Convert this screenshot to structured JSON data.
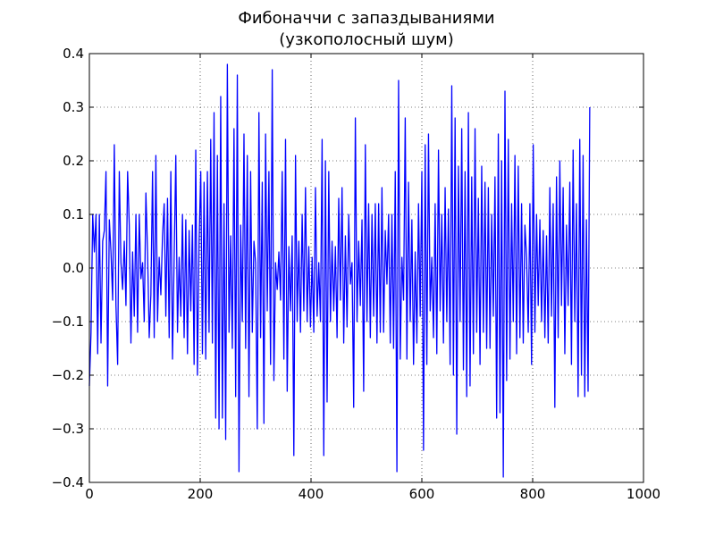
{
  "chart_data": {
    "type": "line",
    "title": "Фибоначчи с запаздываниями",
    "subtitle": "(узкополосный шум)",
    "xlabel": "",
    "ylabel": "",
    "xlim": [
      0,
      1000
    ],
    "ylim": [
      -0.4,
      0.4
    ],
    "xticks": [
      0,
      200,
      400,
      600,
      800,
      1000
    ],
    "yticks": [
      -0.4,
      -0.3,
      -0.2,
      -0.1,
      0.0,
      0.1,
      0.2,
      0.3,
      0.4
    ],
    "xtick_labels": [
      "0",
      "200",
      "400",
      "600",
      "800",
      "1000"
    ],
    "ytick_labels": [
      "−0.4",
      "−0.3",
      "−0.2",
      "−0.1",
      "0.0",
      "0.1",
      "0.2",
      "0.3",
      "0.4"
    ],
    "grid": true,
    "line_color": "#0000ff",
    "series": [
      {
        "x_start": 0,
        "x_step": 3,
        "values": [
          -0.22,
          -0.12,
          0.1,
          0.03,
          0.1,
          -0.16,
          0.1,
          -0.14,
          0.05,
          0.07,
          0.18,
          -0.22,
          0.09,
          0.03,
          -0.06,
          0.23,
          -0.07,
          -0.18,
          0.18,
          0.01,
          -0.04,
          0.05,
          -0.07,
          0.18,
          0.08,
          -0.14,
          0.03,
          -0.09,
          0.1,
          -0.12,
          0.1,
          -0.02,
          0.01,
          -0.1,
          0.14,
          0.03,
          -0.13,
          -0.05,
          0.18,
          -0.13,
          0.21,
          -0.1,
          0.02,
          -0.05,
          0.06,
          0.12,
          -0.09,
          0.13,
          -0.13,
          0.18,
          -0.17,
          0.02,
          0.21,
          -0.12,
          0.02,
          -0.09,
          0.1,
          -0.13,
          0.09,
          -0.16,
          0.07,
          -0.08,
          0.08,
          -0.18,
          0.22,
          -0.2,
          0.05,
          0.18,
          -0.16,
          0.16,
          -0.17,
          0.18,
          -0.12,
          0.24,
          -0.14,
          0.29,
          -0.28,
          0.21,
          -0.3,
          0.32,
          -0.28,
          0.12,
          -0.32,
          0.38,
          -0.12,
          0.06,
          -0.15,
          0.26,
          -0.24,
          0.36,
          -0.38,
          0.08,
          -0.1,
          0.25,
          -0.15,
          0.21,
          -0.24,
          0.18,
          -0.12,
          0.05,
          0.01,
          -0.3,
          0.29,
          -0.13,
          0.16,
          -0.29,
          0.25,
          -0.08,
          0.18,
          -0.18,
          0.37,
          -0.21,
          0.01,
          -0.04,
          0.03,
          -0.06,
          0.18,
          -0.17,
          0.24,
          -0.23,
          0.04,
          -0.08,
          0.06,
          -0.35,
          0.21,
          -0.1,
          0.05,
          -0.12,
          0.1,
          -0.08,
          0.15,
          -0.1,
          0.04,
          -0.11,
          0.02,
          -0.12,
          0.15,
          -0.09,
          0.01,
          -0.1,
          0.24,
          -0.35,
          0.2,
          -0.25,
          0.18,
          -0.1,
          0.05,
          -0.08,
          0.04,
          -0.13,
          0.13,
          -0.06,
          0.15,
          -0.14,
          0.06,
          -0.11,
          0.1,
          -0.03,
          0.01,
          -0.26,
          0.28,
          -0.1,
          0.05,
          -0.07,
          0.09,
          -0.23,
          0.23,
          -0.1,
          0.12,
          -0.13,
          0.1,
          -0.09,
          0.12,
          -0.14,
          0.12,
          -0.12,
          0.15,
          -0.12,
          0.07,
          -0.03,
          0.1,
          -0.14,
          0.1,
          -0.15,
          0.18,
          -0.38,
          0.35,
          -0.17,
          0.02,
          -0.06,
          0.28,
          -0.17,
          0.16,
          -0.1,
          0.09,
          -0.18,
          0.03,
          -0.14,
          0.12,
          -0.09,
          0.18,
          -0.34,
          0.23,
          -0.18,
          0.25,
          -0.08,
          0.02,
          -0.13,
          0.12,
          -0.16,
          0.22,
          -0.08,
          0.1,
          -0.14,
          0.15,
          -0.1,
          0.11,
          -0.18,
          0.34,
          -0.2,
          0.28,
          -0.31,
          0.19,
          -0.1,
          0.26,
          -0.19,
          0.18,
          -0.24,
          0.29,
          -0.22,
          0.17,
          -0.16,
          0.26,
          -0.12,
          0.13,
          -0.18,
          0.19,
          -0.12,
          0.16,
          -0.15,
          0.15,
          -0.15,
          0.1,
          -0.09,
          0.17,
          -0.28,
          0.25,
          -0.27,
          0.2,
          -0.39,
          0.33,
          -0.21,
          0.24,
          -0.17,
          0.12,
          -0.1,
          0.21,
          -0.16,
          0.19,
          -0.13,
          0.12,
          -0.14,
          0.08,
          0.02,
          -0.12,
          0.12,
          -0.18,
          0.23,
          -0.12,
          0.1,
          -0.07,
          0.09,
          -0.1,
          0.07,
          -0.13,
          0.06,
          -0.14,
          0.15,
          -0.09,
          0.12,
          -0.26,
          0.17,
          -0.13,
          0.2,
          -0.07,
          0.15,
          -0.16,
          0.08,
          -0.07,
          0.16,
          -0.18,
          0.22,
          -0.1,
          0.12,
          -0.24,
          0.24,
          -0.2,
          0.21,
          -0.24,
          0.09,
          -0.23,
          0.3
        ]
      }
    ]
  }
}
